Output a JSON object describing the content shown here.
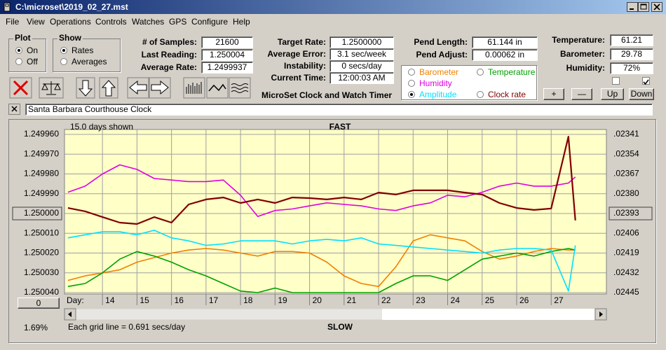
{
  "window": {
    "title": "C:\\microset\\2019_02_27.mst"
  },
  "menu": [
    "File",
    "View",
    "Operations",
    "Controls",
    "Watches",
    "GPS",
    "Configure",
    "Help"
  ],
  "plot_group": {
    "label": "Plot",
    "options": [
      "On",
      "Off"
    ],
    "selected": 0
  },
  "show_group": {
    "label": "Show",
    "options": [
      "Rates",
      "Averages"
    ],
    "selected": 0
  },
  "readings": [
    {
      "label": "# of Samples:",
      "value": "21600"
    },
    {
      "label": "Last Reading:",
      "value": "1.250004"
    },
    {
      "label": "Average Rate:",
      "value": "1.2499937"
    }
  ],
  "targets": [
    {
      "label": "Target Rate:",
      "value": "1.2500000"
    },
    {
      "label": "Average Error:",
      "value": "3.1 sec/week"
    },
    {
      "label": "Instability:",
      "value": "0 secs/day"
    },
    {
      "label": "Current Time:",
      "value": "12:00:03 AM"
    }
  ],
  "pendulum": [
    {
      "label": "Pend Length:",
      "value": "61.144 in"
    },
    {
      "label": "Pend Adjust:",
      "value": "0.00062 in"
    }
  ],
  "environment": [
    {
      "label": "Temperature:",
      "value": "61.21"
    },
    {
      "label": "Barometer:",
      "value": "29.78"
    },
    {
      "label": "Humidity:",
      "value": "72%"
    }
  ],
  "checkboxes": [
    false,
    true
  ],
  "buttons": [
    "+",
    "—",
    "Up",
    "Down"
  ],
  "app_title": "MicroSet Clock and Watch Timer",
  "clock_name": "Santa Barbara Courthouse Clock",
  "status": {
    "percent": "1.69%",
    "zero_button": "0"
  },
  "chart_data": {
    "type": "line",
    "top_label": "FAST",
    "bottom_label": "SLOW",
    "span_label": "15.0 days shown",
    "grid_note": "Each grid line = 0.691 secs/day",
    "x_label": "Day:",
    "selected_series": 3,
    "reference_tick": 4,
    "grid": true,
    "xlim": [
      12.9,
      28.6
    ],
    "xticks": [
      14,
      15,
      16,
      17,
      18,
      19,
      20,
      21,
      22,
      23,
      24,
      25,
      26,
      27
    ],
    "ylim": [
      1.25004,
      1.24996
    ],
    "yticks": [
      {
        "value": 1.24996,
        "label": "1.249960"
      },
      {
        "value": 1.24997,
        "label": "1.249970"
      },
      {
        "value": 1.24998,
        "label": "1.249980"
      },
      {
        "value": 1.24999,
        "label": "1.249990"
      },
      {
        "value": 1.25,
        "label": "1.250000"
      },
      {
        "value": 1.25001,
        "label": "1.250010"
      },
      {
        "value": 1.25002,
        "label": "1.250020"
      },
      {
        "value": 1.25003,
        "label": "1.250030"
      },
      {
        "value": 1.25004,
        "label": "1.250040"
      }
    ],
    "y2lim": [
      0.02445,
      0.02341
    ],
    "y2ticks": [
      {
        "value": 0.02341,
        "label": ".02341"
      },
      {
        "value": 0.02354,
        "label": ".02354"
      },
      {
        "value": 0.02367,
        "label": ".02367"
      },
      {
        "value": 0.0238,
        "label": ".02380"
      },
      {
        "value": 0.02393,
        "label": ".02393"
      },
      {
        "value": 0.02406,
        "label": ".02406"
      },
      {
        "value": 0.02419,
        "label": ".02419"
      },
      {
        "value": 0.02432,
        "label": ".02432"
      },
      {
        "value": 0.02445,
        "label": ".02445"
      }
    ],
    "x": [
      13.0,
      13.5,
      14.0,
      14.5,
      15.0,
      15.5,
      16.0,
      16.5,
      17.0,
      17.5,
      18.0,
      18.5,
      19.0,
      19.5,
      20.0,
      20.5,
      21.0,
      21.5,
      22.0,
      22.5,
      23.0,
      23.5,
      24.0,
      24.5,
      25.0,
      25.5,
      26.0,
      26.5,
      27.0,
      27.5,
      27.7
    ],
    "series": [
      {
        "name": "Barometer",
        "color": "#f08000",
        "axis": "y2",
        "values": [
          0.02437,
          0.02434,
          0.02432,
          0.0243,
          0.02425,
          0.02422,
          0.02419,
          0.02417,
          0.02416,
          0.02417,
          0.02419,
          0.02421,
          0.02418,
          0.02418,
          0.02419,
          0.02425,
          0.02434,
          0.02439,
          0.02441,
          0.02428,
          0.02411,
          0.02407,
          0.02409,
          0.02411,
          0.02418,
          0.02423,
          0.02421,
          0.02418,
          0.02416,
          0.02417,
          0.02417
        ]
      },
      {
        "name": "Temperature",
        "color": "#00a000",
        "axis": "y2",
        "values": [
          0.02441,
          0.02439,
          0.02432,
          0.02423,
          0.02418,
          0.02421,
          0.02425,
          0.0243,
          0.02434,
          0.02439,
          0.02444,
          0.02445,
          0.02442,
          0.02445,
          0.02445,
          0.02445,
          0.02445,
          0.02445,
          0.02445,
          0.02439,
          0.02434,
          0.02434,
          0.02437,
          0.0243,
          0.02423,
          0.02421,
          0.02419,
          0.02421,
          0.02418,
          0.02416,
          0.02417
        ]
      },
      {
        "name": "Humidity",
        "color": "#e000e0",
        "axis": "y2",
        "values": [
          0.02379,
          0.02375,
          0.02367,
          0.02361,
          0.02364,
          0.0237,
          0.02371,
          0.02372,
          0.02372,
          0.02371,
          0.02381,
          0.02395,
          0.02391,
          0.0239,
          0.02388,
          0.02386,
          0.02387,
          0.02388,
          0.0239,
          0.02391,
          0.02388,
          0.02386,
          0.02381,
          0.02382,
          0.02379,
          0.02375,
          0.02373,
          0.02375,
          0.02375,
          0.02373,
          0.02369
        ]
      },
      {
        "name": "Amplitude",
        "color": "#00e0ff",
        "axis": "y2",
        "values": [
          0.02409,
          0.02407,
          0.02405,
          0.02405,
          0.02407,
          0.02404,
          0.02409,
          0.02411,
          0.02414,
          0.02413,
          0.02411,
          0.02411,
          0.02411,
          0.02413,
          0.02411,
          0.0241,
          0.02411,
          0.02409,
          0.02413,
          0.02414,
          0.02415,
          0.02416,
          0.02417,
          0.02418,
          0.02419,
          0.02417,
          0.02416,
          0.02416,
          0.02417,
          0.02444,
          0.02414
        ]
      },
      {
        "name": "Clock rate",
        "color": "#800000",
        "values": [
          1.2499972,
          1.2499989,
          1.2500018,
          1.2500046,
          1.2500053,
          1.2500018,
          1.2500046,
          1.2499954,
          1.2499929,
          1.2499919,
          1.2499947,
          1.2499929,
          1.2499947,
          1.2499919,
          1.2499922,
          1.2499929,
          1.2499919,
          1.2499929,
          1.2499894,
          1.2499904,
          1.2499883,
          1.2499883,
          1.2499883,
          1.2499894,
          1.2499904,
          1.2499947,
          1.2499972,
          1.2499982,
          1.2499975,
          1.2499611,
          1.2500035
        ]
      }
    ]
  }
}
